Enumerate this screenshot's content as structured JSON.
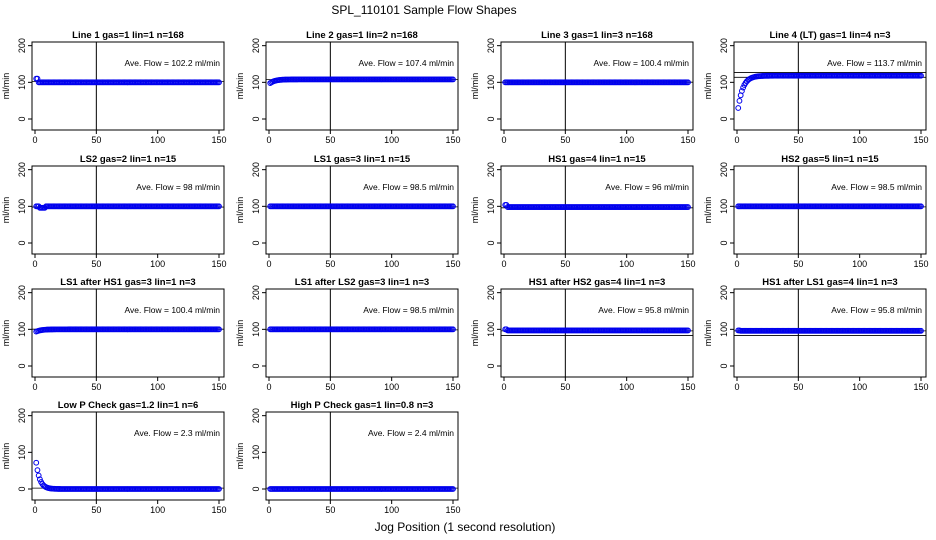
{
  "figure": {
    "title": "SPL_110101  Sample Flow Shapes",
    "xlabel": "Jog Position (1 second resolution)"
  },
  "chart_data": [
    {
      "type": "scatter",
      "title": "Line 1 gas=1 lin=1 n=168",
      "ylabel": "ml/min",
      "xlim": [
        0,
        150
      ],
      "ylim": [
        -30,
        210
      ],
      "xticks": [
        0,
        50,
        100,
        150
      ],
      "yticks": [
        0,
        100,
        200
      ],
      "annotation": "Ave. Flow =  102.2  ml/min",
      "mean": 102.2,
      "vline_x": 50,
      "hlines": [
        102.2
      ],
      "shape": "const",
      "start": 110,
      "level": 100
    },
    {
      "type": "scatter",
      "title": "Line 2 gas=1 lin=2 n=168",
      "ylabel": "ml/min",
      "xlim": [
        0,
        150
      ],
      "ylim": [
        -30,
        210
      ],
      "xticks": [
        0,
        50,
        100,
        150
      ],
      "yticks": [
        0,
        100,
        200
      ],
      "annotation": "Ave. Flow =  107.4  ml/min",
      "mean": 107.4,
      "vline_x": 50,
      "hlines": [
        107.4
      ],
      "shape": "rise",
      "start": 95,
      "level": 108
    },
    {
      "type": "scatter",
      "title": "Line 3 gas=1 lin=3 n=168",
      "ylabel": "ml/min",
      "xlim": [
        0,
        150
      ],
      "ylim": [
        -30,
        210
      ],
      "xticks": [
        0,
        50,
        100,
        150
      ],
      "yticks": [
        0,
        100,
        200
      ],
      "annotation": "Ave. Flow =  100.4  ml/min",
      "mean": 100.4,
      "vline_x": 50,
      "hlines": [
        100.4
      ],
      "shape": "const",
      "start": 100,
      "level": 100
    },
    {
      "type": "scatter",
      "title": "Line 4 (LT) gas=1 lin=4 n=3",
      "ylabel": "ml/min",
      "xlim": [
        0,
        150
      ],
      "ylim": [
        -30,
        210
      ],
      "xticks": [
        0,
        50,
        100,
        150
      ],
      "yticks": [
        0,
        100,
        200
      ],
      "annotation": "Ave. Flow =  113.7  ml/min",
      "mean": 113.7,
      "vline_x": 50,
      "hlines": [
        113.7,
        127
      ],
      "shape": "rise",
      "start": 5,
      "level": 118
    },
    {
      "type": "scatter",
      "title": "LS2 gas=2 lin=1 n=15",
      "ylabel": "ml/min",
      "xlim": [
        0,
        150
      ],
      "ylim": [
        -30,
        210
      ],
      "xticks": [
        0,
        50,
        100,
        150
      ],
      "yticks": [
        0,
        100,
        200
      ],
      "annotation": "Ave. Flow =  98  ml/min",
      "mean": 98,
      "vline_x": 50,
      "hlines": [
        98
      ],
      "shape": "dip",
      "start": 100,
      "level": 100
    },
    {
      "type": "scatter",
      "title": "LS1 gas=3 lin=1 n=15",
      "ylabel": "ml/min",
      "xlim": [
        0,
        150
      ],
      "ylim": [
        -30,
        210
      ],
      "xticks": [
        0,
        50,
        100,
        150
      ],
      "yticks": [
        0,
        100,
        200
      ],
      "annotation": "Ave. Flow =  98.5  ml/min",
      "mean": 98.5,
      "vline_x": 50,
      "hlines": [
        98.5
      ],
      "shape": "const",
      "start": 100,
      "level": 100
    },
    {
      "type": "scatter",
      "title": "HS1 gas=4 lin=1 n=15",
      "ylabel": "ml/min",
      "xlim": [
        0,
        150
      ],
      "ylim": [
        -30,
        210
      ],
      "xticks": [
        0,
        50,
        100,
        150
      ],
      "yticks": [
        0,
        100,
        200
      ],
      "annotation": "Ave. Flow =  96  ml/min",
      "mean": 96,
      "vline_x": 50,
      "hlines": [
        96
      ],
      "shape": "const",
      "start": 104,
      "level": 98
    },
    {
      "type": "scatter",
      "title": "HS2 gas=5 lin=1 n=15",
      "ylabel": "ml/min",
      "xlim": [
        0,
        150
      ],
      "ylim": [
        -30,
        210
      ],
      "xticks": [
        0,
        50,
        100,
        150
      ],
      "yticks": [
        0,
        100,
        200
      ],
      "annotation": "Ave. Flow =  98.5  ml/min",
      "mean": 98.5,
      "vline_x": 50,
      "hlines": [
        98.5
      ],
      "shape": "const",
      "start": 100,
      "level": 100
    },
    {
      "type": "scatter",
      "title": "LS1 after HS1 gas=3 lin=1 n=3",
      "ylabel": "ml/min",
      "xlim": [
        0,
        150
      ],
      "ylim": [
        -30,
        210
      ],
      "xticks": [
        0,
        50,
        100,
        150
      ],
      "yticks": [
        0,
        100,
        200
      ],
      "annotation": "Ave. Flow =  100.4  ml/min",
      "mean": 100.4,
      "vline_x": 50,
      "hlines": [
        100.4
      ],
      "shape": "rise",
      "start": 92,
      "level": 100
    },
    {
      "type": "scatter",
      "title": "LS1 after LS2 gas=3 lin=1 n=3",
      "ylabel": "ml/min",
      "xlim": [
        0,
        150
      ],
      "ylim": [
        -30,
        210
      ],
      "xticks": [
        0,
        50,
        100,
        150
      ],
      "yticks": [
        0,
        100,
        200
      ],
      "annotation": "Ave. Flow =  98.5  ml/min",
      "mean": 98.5,
      "vline_x": 50,
      "hlines": [
        98.5
      ],
      "shape": "const",
      "start": 100,
      "level": 100
    },
    {
      "type": "scatter",
      "title": "HS1 after HS2 gas=4 lin=1 n=3",
      "ylabel": "ml/min",
      "xlim": [
        0,
        150
      ],
      "ylim": [
        -30,
        210
      ],
      "xticks": [
        0,
        50,
        100,
        150
      ],
      "yticks": [
        0,
        100,
        200
      ],
      "annotation": "Ave. Flow =  95.8  ml/min",
      "mean": 95.8,
      "vline_x": 50,
      "hlines": [
        95.8,
        83
      ],
      "shape": "const",
      "start": 100,
      "level": 97
    },
    {
      "type": "scatter",
      "title": "HS1 after LS1 gas=4 lin=1 n=3",
      "ylabel": "ml/min",
      "xlim": [
        0,
        150
      ],
      "ylim": [
        -30,
        210
      ],
      "xticks": [
        0,
        50,
        100,
        150
      ],
      "yticks": [
        0,
        100,
        200
      ],
      "annotation": "Ave. Flow =  95.8  ml/min",
      "mean": 95.8,
      "vline_x": 50,
      "hlines": [
        95.8,
        83
      ],
      "shape": "const",
      "start": 97,
      "level": 96
    },
    {
      "type": "scatter",
      "title": "Low P Check gas=1.2 lin=1 n=6",
      "ylabel": "ml/min",
      "xlim": [
        0,
        150
      ],
      "ylim": [
        -30,
        210
      ],
      "xticks": [
        0,
        50,
        100,
        150
      ],
      "yticks": [
        0,
        100,
        200
      ],
      "annotation": "Ave. Flow =  2.3  ml/min",
      "mean": 2.3,
      "vline_x": 50,
      "hlines": [
        2.3
      ],
      "shape": "decay",
      "start": 100,
      "level": 0
    },
    {
      "type": "scatter",
      "title": "High P Check gas=1 lin=0.8 n=3",
      "ylabel": "ml/min",
      "xlim": [
        0,
        150
      ],
      "ylim": [
        -30,
        210
      ],
      "xticks": [
        0,
        50,
        100,
        150
      ],
      "yticks": [
        0,
        100,
        200
      ],
      "annotation": "Ave. Flow =  2.4  ml/min",
      "mean": 2.4,
      "vline_x": 50,
      "hlines": [
        2.4
      ],
      "shape": "const",
      "start": 0,
      "level": 0
    }
  ],
  "colors": {
    "points": "#0000ee",
    "axes": "#000000",
    "background": "#ffffff"
  }
}
